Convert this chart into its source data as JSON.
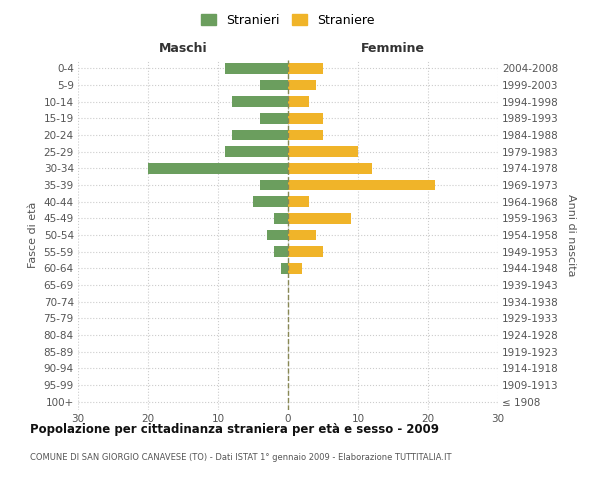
{
  "age_groups": [
    "100+",
    "95-99",
    "90-94",
    "85-89",
    "80-84",
    "75-79",
    "70-74",
    "65-69",
    "60-64",
    "55-59",
    "50-54",
    "45-49",
    "40-44",
    "35-39",
    "30-34",
    "25-29",
    "20-24",
    "15-19",
    "10-14",
    "5-9",
    "0-4"
  ],
  "birth_years": [
    "≤ 1908",
    "1909-1913",
    "1914-1918",
    "1919-1923",
    "1924-1928",
    "1929-1933",
    "1934-1938",
    "1939-1943",
    "1944-1948",
    "1949-1953",
    "1954-1958",
    "1959-1963",
    "1964-1968",
    "1969-1973",
    "1974-1978",
    "1979-1983",
    "1984-1988",
    "1989-1993",
    "1994-1998",
    "1999-2003",
    "2004-2008"
  ],
  "males": [
    0,
    0,
    0,
    0,
    0,
    0,
    0,
    0,
    1,
    2,
    3,
    2,
    5,
    4,
    20,
    9,
    8,
    4,
    8,
    4,
    9
  ],
  "females": [
    0,
    0,
    0,
    0,
    0,
    0,
    0,
    0,
    2,
    5,
    4,
    9,
    3,
    21,
    12,
    10,
    5,
    5,
    3,
    4,
    5
  ],
  "male_color": "#6b9e5e",
  "female_color": "#f0b429",
  "title": "Popolazione per cittadinanza straniera per età e sesso - 2009",
  "subtitle": "COMUNE DI SAN GIORGIO CANAVESE (TO) - Dati ISTAT 1° gennaio 2009 - Elaborazione TUTTITALIA.IT",
  "xlim": 30,
  "x_label_maschi": "Maschi",
  "x_label_femmine": "Femmine",
  "y_label_left": "Fasce di età",
  "y_label_right": "Anni di nascita",
  "legend_male": "Stranieri",
  "legend_female": "Straniere",
  "background_color": "#ffffff",
  "grid_color": "#cccccc",
  "center_line_color": "#888855"
}
